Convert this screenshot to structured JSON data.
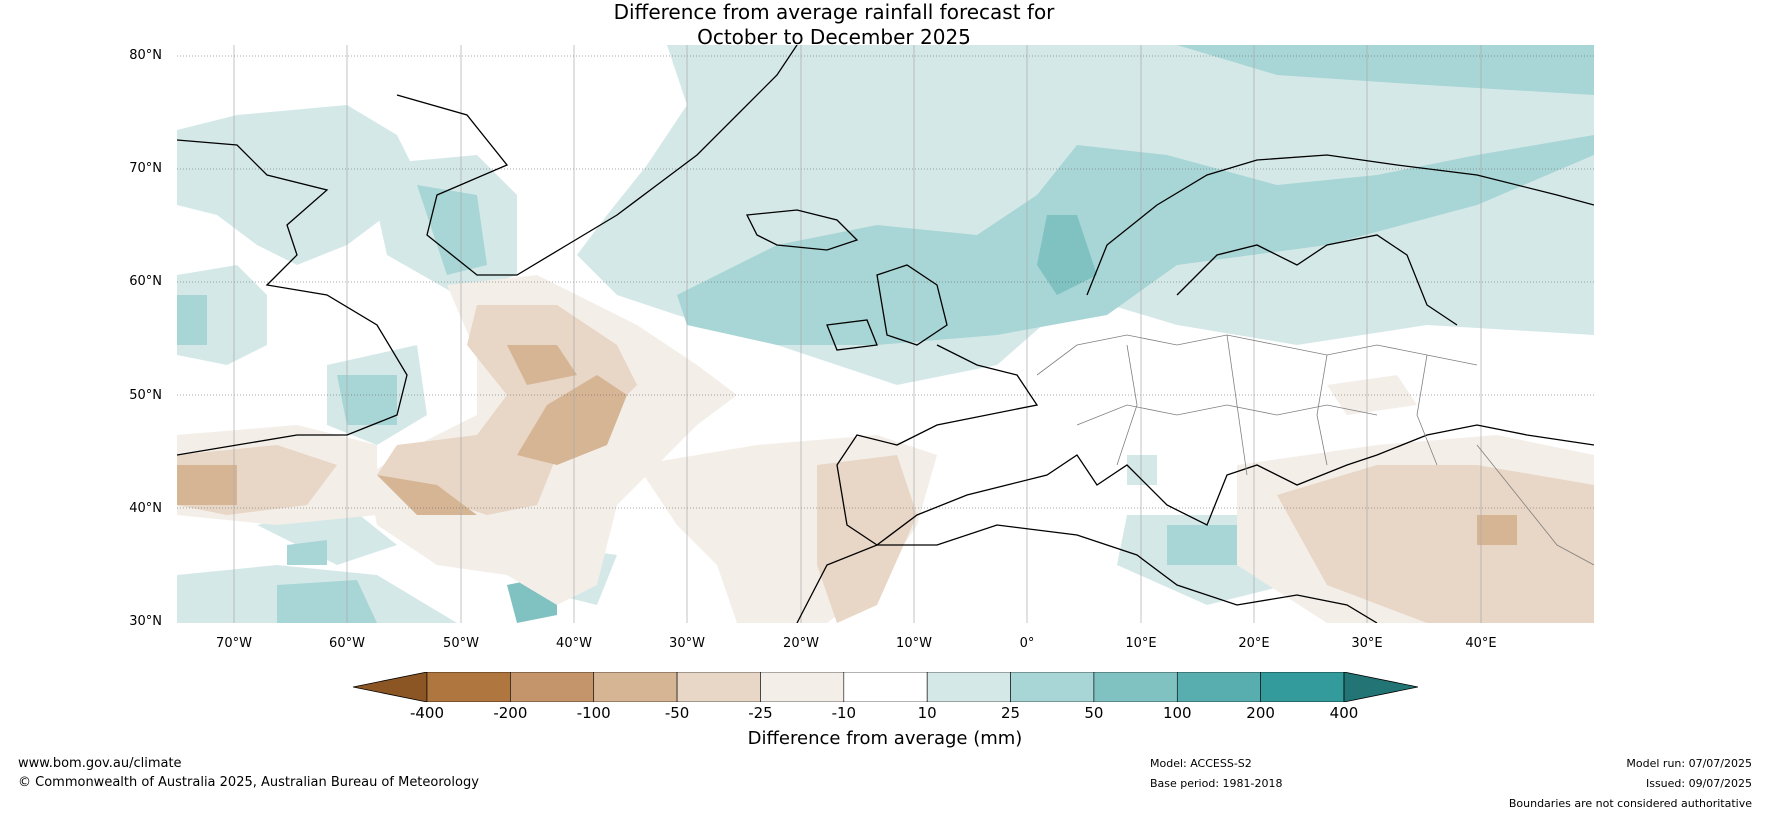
{
  "title": {
    "line1": "Difference from average rainfall forecast for",
    "line2": "October to December 2025"
  },
  "map": {
    "latitude_labels": [
      "80°N",
      "70°N",
      "60°N",
      "50°N",
      "40°N",
      "30°N"
    ],
    "longitude_labels": [
      "70°W",
      "60°W",
      "50°W",
      "40°W",
      "30°W",
      "20°W",
      "10°W",
      "0°",
      "10°E",
      "20°E",
      "30°E",
      "40°E"
    ],
    "colors": {
      "ocean_white": "#ffffff",
      "coast": "#000000",
      "border": "#808080",
      "grid": "#555555"
    }
  },
  "legend": {
    "ticks": [
      "-400",
      "-200",
      "-100",
      "-50",
      "-25",
      "-10",
      "10",
      "25",
      "50",
      "100",
      "200",
      "400"
    ],
    "colors": [
      "#8c5524",
      "#b07640",
      "#c4956a",
      "#d6b594",
      "#e8d6c6",
      "#f3eee8",
      "#ffffff",
      "#d5e8e8",
      "#a8d5d5",
      "#80c1c1",
      "#58aeae",
      "#339b9b",
      "#237575"
    ],
    "label": "Difference from average (mm)"
  },
  "footer": {
    "website": "www.bom.gov.au/climate",
    "copyright": "© Commonwealth of Australia 2025, Australian Bureau of Meteorology",
    "model": "Model: ACCESS-S2",
    "base_period": "Base period: 1981-2018",
    "model_run": "Model run: 07/07/2025",
    "issued": "Issued: 09/07/2025",
    "disclaimer": "Boundaries are not considered authoritative"
  }
}
